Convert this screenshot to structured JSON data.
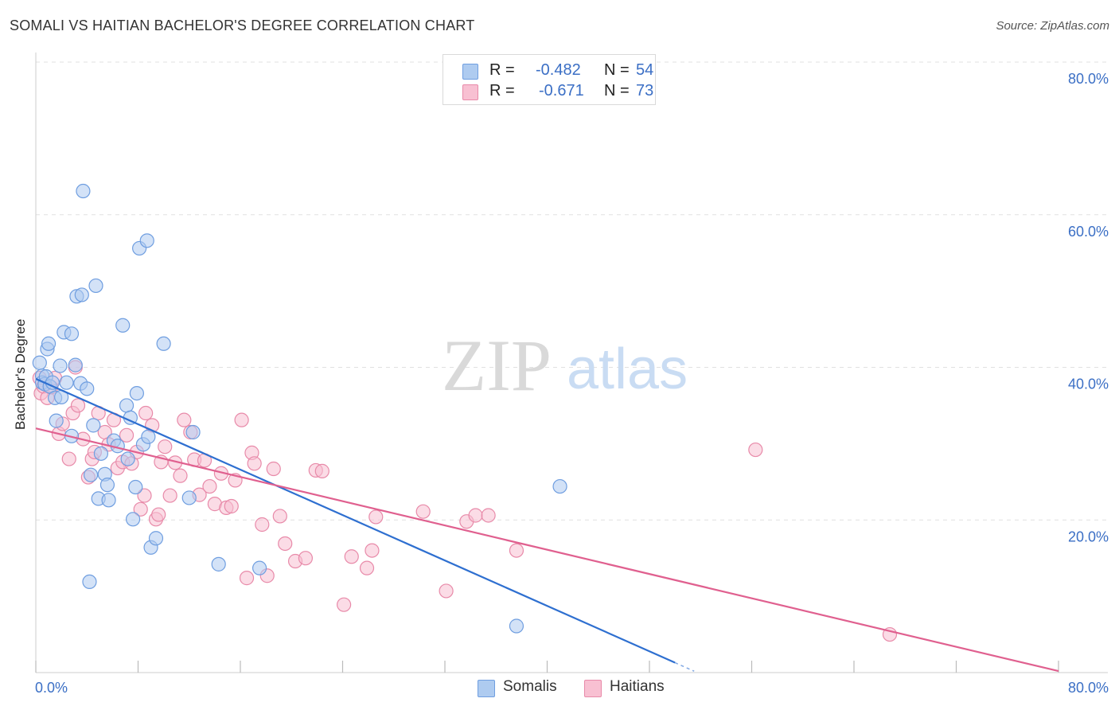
{
  "title": "SOMALI VS HAITIAN BACHELOR'S DEGREE CORRELATION CHART",
  "source": "Source: ZipAtlas.com",
  "watermark": {
    "zip": "ZIP",
    "atlas": "atlas"
  },
  "legend_top": [
    {
      "r_label": "R =",
      "r_value": "-0.482",
      "n_label": "N =",
      "n_value": "54",
      "color": "#aecbf0",
      "border": "#6f9ee0"
    },
    {
      "r_label": "R =",
      "r_value": "-0.671",
      "n_label": "N =",
      "n_value": "73",
      "color": "#f8c0d2",
      "border": "#e88aa9"
    }
  ],
  "legend_bottom": [
    {
      "label": "Somalis",
      "color": "#aecbf0",
      "border": "#6f9ee0"
    },
    {
      "label": "Haitians",
      "color": "#f8c0d2",
      "border": "#e88aa9"
    }
  ],
  "colors": {
    "somali_line": "#2e6fd0",
    "haitian_line": "#e0608f",
    "tick_label": "#3b6fc5"
  },
  "chart_data": {
    "type": "scatter",
    "title": "SOMALI VS HAITIAN BACHELOR'S DEGREE CORRELATION CHART",
    "ylabel": "Bachelor's Degree",
    "xlabel": "",
    "xlim": [
      0,
      80
    ],
    "ylim": [
      0,
      80
    ],
    "x_tick_labels": [
      "0.0%",
      "80.0%"
    ],
    "y_ticks": [
      20,
      40,
      60,
      80
    ],
    "y_tick_labels": [
      "20.0%",
      "40.0%",
      "60.0%",
      "80.0%"
    ],
    "grid": "horizontal dashed",
    "legend_position": "top-center and bottom",
    "series": [
      {
        "name": "Somalis",
        "points": [
          [
            0.3,
            40.6
          ],
          [
            0.5,
            38.9
          ],
          [
            0.5,
            38.0
          ],
          [
            0.7,
            37.8
          ],
          [
            0.8,
            38.8
          ],
          [
            0.9,
            42.4
          ],
          [
            1.0,
            43.1
          ],
          [
            1.1,
            37.5
          ],
          [
            1.3,
            38.0
          ],
          [
            1.5,
            36.0
          ],
          [
            1.6,
            33.0
          ],
          [
            1.9,
            40.2
          ],
          [
            2.0,
            36.1
          ],
          [
            2.2,
            44.6
          ],
          [
            2.4,
            38.0
          ],
          [
            2.8,
            44.4
          ],
          [
            2.8,
            31.0
          ],
          [
            3.1,
            40.3
          ],
          [
            3.2,
            49.3
          ],
          [
            3.5,
            37.9
          ],
          [
            3.6,
            49.5
          ],
          [
            3.7,
            63.1
          ],
          [
            4.0,
            37.2
          ],
          [
            4.2,
            11.9
          ],
          [
            4.3,
            25.9
          ],
          [
            4.5,
            32.4
          ],
          [
            4.7,
            50.7
          ],
          [
            4.9,
            22.8
          ],
          [
            5.1,
            28.7
          ],
          [
            5.4,
            26.0
          ],
          [
            5.6,
            24.6
          ],
          [
            5.7,
            22.6
          ],
          [
            6.1,
            30.4
          ],
          [
            6.4,
            29.7
          ],
          [
            6.8,
            45.5
          ],
          [
            7.1,
            35.0
          ],
          [
            7.2,
            28.0
          ],
          [
            7.4,
            33.4
          ],
          [
            7.6,
            20.1
          ],
          [
            7.8,
            24.3
          ],
          [
            7.9,
            36.6
          ],
          [
            8.1,
            55.6
          ],
          [
            8.4,
            29.9
          ],
          [
            8.7,
            56.6
          ],
          [
            8.8,
            30.9
          ],
          [
            9.0,
            16.4
          ],
          [
            9.4,
            17.6
          ],
          [
            10.0,
            43.1
          ],
          [
            12.0,
            22.9
          ],
          [
            12.3,
            31.5
          ],
          [
            14.3,
            14.2
          ],
          [
            17.5,
            13.7
          ],
          [
            37.6,
            6.1
          ],
          [
            41.0,
            24.4
          ]
        ]
      },
      {
        "name": "Haitians",
        "points": [
          [
            0.3,
            38.6
          ],
          [
            0.4,
            36.6
          ],
          [
            0.6,
            37.5
          ],
          [
            0.9,
            36.0
          ],
          [
            1.2,
            37.4
          ],
          [
            1.5,
            38.6
          ],
          [
            1.8,
            31.3
          ],
          [
            2.1,
            32.6
          ],
          [
            2.6,
            28.0
          ],
          [
            2.9,
            34.0
          ],
          [
            3.1,
            40.0
          ],
          [
            3.3,
            35.0
          ],
          [
            3.7,
            30.6
          ],
          [
            4.1,
            25.6
          ],
          [
            4.4,
            28.0
          ],
          [
            4.6,
            28.9
          ],
          [
            4.9,
            34.0
          ],
          [
            5.4,
            31.5
          ],
          [
            5.7,
            29.9
          ],
          [
            6.1,
            33.1
          ],
          [
            6.4,
            26.8
          ],
          [
            6.8,
            27.6
          ],
          [
            7.1,
            31.1
          ],
          [
            7.5,
            27.4
          ],
          [
            7.9,
            28.9
          ],
          [
            8.2,
            21.4
          ],
          [
            8.5,
            23.2
          ],
          [
            8.6,
            34.0
          ],
          [
            9.1,
            32.4
          ],
          [
            9.4,
            20.1
          ],
          [
            9.6,
            20.7
          ],
          [
            9.8,
            27.6
          ],
          [
            10.1,
            29.6
          ],
          [
            10.5,
            23.2
          ],
          [
            10.9,
            27.5
          ],
          [
            11.3,
            25.8
          ],
          [
            11.6,
            33.1
          ],
          [
            12.1,
            31.5
          ],
          [
            12.4,
            27.9
          ],
          [
            12.8,
            23.3
          ],
          [
            13.2,
            27.8
          ],
          [
            13.6,
            24.4
          ],
          [
            14.0,
            22.1
          ],
          [
            14.5,
            26.1
          ],
          [
            14.9,
            21.6
          ],
          [
            15.3,
            21.8
          ],
          [
            15.6,
            25.2
          ],
          [
            16.1,
            33.1
          ],
          [
            16.5,
            12.4
          ],
          [
            16.9,
            28.8
          ],
          [
            17.1,
            27.4
          ],
          [
            17.7,
            19.4
          ],
          [
            18.1,
            12.7
          ],
          [
            18.6,
            26.7
          ],
          [
            19.1,
            20.5
          ],
          [
            19.5,
            16.9
          ],
          [
            20.3,
            14.6
          ],
          [
            21.1,
            15.0
          ],
          [
            21.9,
            26.5
          ],
          [
            22.4,
            26.4
          ],
          [
            24.1,
            8.9
          ],
          [
            24.7,
            15.2
          ],
          [
            25.9,
            13.7
          ],
          [
            26.3,
            16.0
          ],
          [
            26.6,
            20.4
          ],
          [
            30.3,
            21.1
          ],
          [
            32.1,
            10.7
          ],
          [
            33.7,
            19.8
          ],
          [
            34.4,
            20.6
          ],
          [
            35.4,
            20.6
          ],
          [
            37.6,
            16.0
          ],
          [
            56.3,
            29.2
          ],
          [
            66.8,
            5.0
          ]
        ]
      }
    ],
    "trend_lines": [
      {
        "name": "Somalis",
        "x": [
          0,
          50
        ],
        "y": [
          38.5,
          1.3
        ]
      },
      {
        "name": "Haitians",
        "x": [
          0,
          80
        ],
        "y": [
          32.0,
          0.2
        ]
      }
    ]
  }
}
